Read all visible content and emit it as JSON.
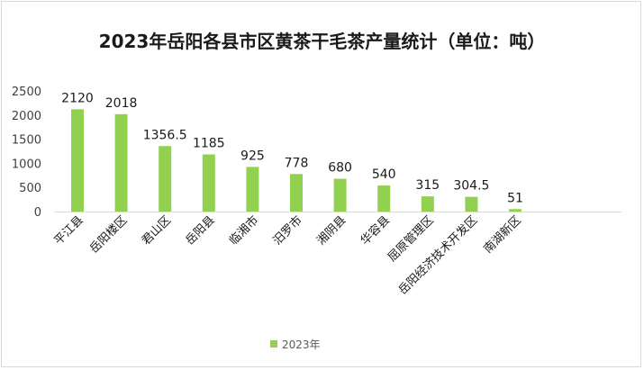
{
  "chart_data": {
    "type": "bar",
    "title": "2023年岳阳各县市区黄茶干毛茶产量统计（单位：吨）",
    "categories": [
      "平江县",
      "岳阳楼区",
      "君山区",
      "岳阳县",
      "临湘市",
      "汨罗市",
      "湘阴县",
      "华容县",
      "屈原管理区",
      "岳阳经济技术开发区",
      "南湖新区"
    ],
    "series": [
      {
        "name": "2023年",
        "values": [
          2120,
          2018,
          1356.5,
          1185,
          925,
          778,
          680,
          540,
          315,
          304.5,
          51
        ],
        "color": "#92d050"
      }
    ],
    "ylim": [
      0,
      2500
    ],
    "yticks": [
      0,
      500,
      1000,
      1500,
      2000,
      2500
    ],
    "grid": false,
    "legend_position": "bottom",
    "xlabel": "",
    "ylabel": ""
  }
}
